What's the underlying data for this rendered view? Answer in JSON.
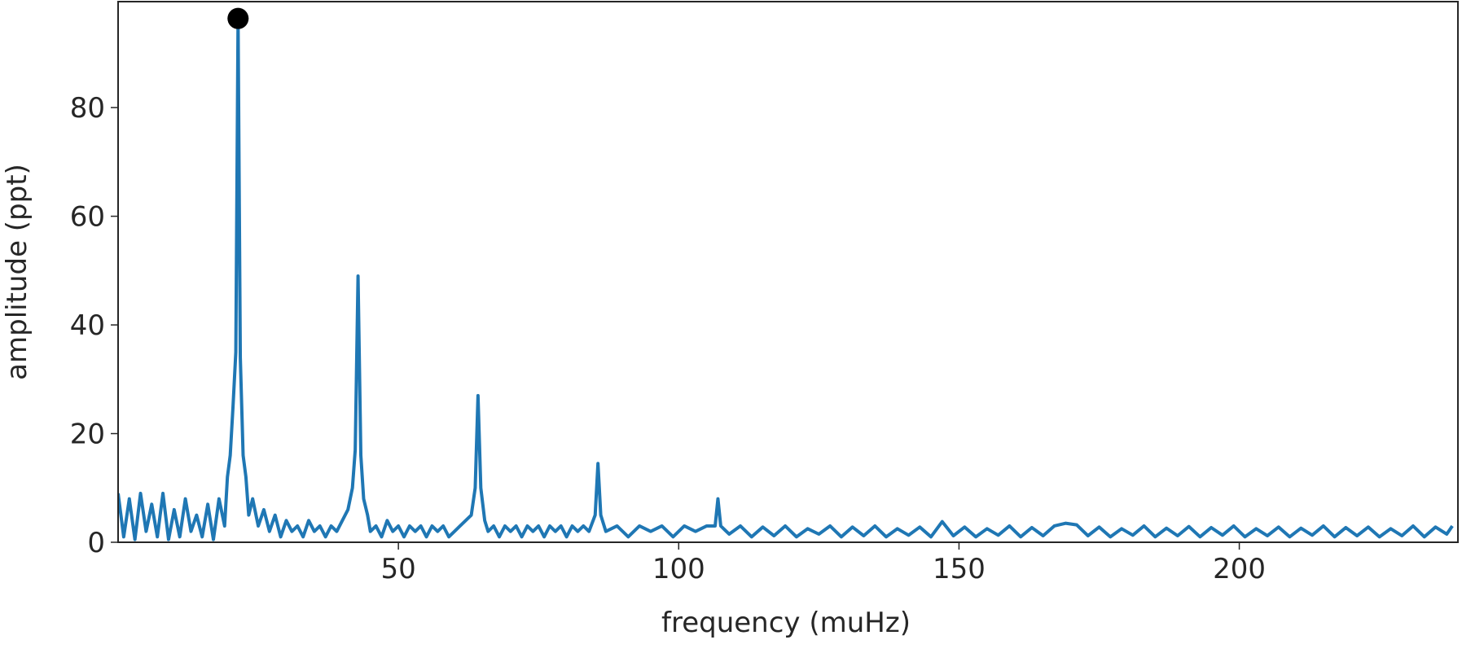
{
  "chart_data": {
    "type": "line",
    "xlabel": "frequency (muHz)",
    "ylabel": "amplitude (ppt)",
    "xlim": [
      0,
      239
    ],
    "ylim": [
      0,
      99.5
    ],
    "xticks": [
      50,
      100,
      150,
      200
    ],
    "yticks": [
      0,
      20,
      40,
      60,
      80
    ],
    "series": [
      {
        "color": "#1f77b4",
        "x": [
          0,
          1,
          2,
          3,
          4,
          5,
          6,
          7,
          8,
          9,
          10,
          11,
          12,
          13,
          14,
          15,
          16,
          17,
          18,
          19,
          19.5,
          20,
          20.5,
          21,
          21.4,
          21.8,
          22.3,
          22.8,
          23.3,
          24,
          25,
          26,
          27,
          28,
          29,
          30,
          31,
          32,
          33,
          34,
          35,
          36,
          37,
          38,
          39,
          40,
          41,
          41.8,
          42.3,
          42.8,
          43.3,
          43.8,
          44.5,
          45,
          46,
          47,
          48,
          49,
          50,
          51,
          52,
          53,
          54,
          55,
          56,
          57,
          58,
          59,
          60,
          61,
          62,
          63,
          63.7,
          64.2,
          64.7,
          65.4,
          66,
          67,
          68,
          69,
          70,
          71,
          72,
          73,
          74,
          75,
          76,
          77,
          78,
          79,
          80,
          81,
          82,
          83,
          84,
          85.1,
          85.6,
          86.1,
          87,
          89,
          91,
          93,
          95,
          97,
          99,
          101,
          103,
          105,
          106.5,
          107,
          107.5,
          109,
          111,
          113,
          115,
          117,
          119,
          121,
          123,
          125,
          127,
          129,
          131,
          133,
          135,
          137,
          139,
          141,
          143,
          145,
          147,
          149,
          151,
          153,
          155,
          157,
          159,
          161,
          163,
          165,
          167,
          169,
          171,
          173,
          175,
          177,
          179,
          181,
          183,
          185,
          187,
          189,
          191,
          193,
          195,
          197,
          199,
          201,
          203,
          205,
          207,
          209,
          211,
          213,
          215,
          217,
          219,
          221,
          223,
          225,
          227,
          229,
          231,
          233,
          235,
          237,
          238
        ],
        "values": [
          9,
          1,
          8,
          0.5,
          9,
          2,
          7,
          1,
          9,
          0.5,
          6,
          1,
          8,
          2,
          5,
          1,
          7,
          0.5,
          8,
          3,
          12,
          16,
          25,
          35,
          96.4,
          34,
          16,
          12,
          5,
          8,
          3,
          6,
          2,
          5,
          1,
          4,
          2,
          3,
          1,
          4,
          2,
          3,
          1,
          3,
          2,
          4,
          6,
          10,
          17,
          49,
          16,
          8,
          5,
          2,
          3,
          1,
          4,
          2,
          3,
          1,
          3,
          2,
          3,
          1,
          3,
          2,
          3,
          1,
          2,
          3,
          4,
          5,
          10,
          27,
          10,
          4,
          2,
          3,
          1,
          3,
          2,
          3,
          1,
          3,
          2,
          3,
          1,
          3,
          2,
          3,
          1,
          3,
          2,
          3,
          2,
          5,
          14.5,
          5,
          2,
          3,
          1,
          3,
          2,
          3,
          1,
          3,
          2,
          3,
          3,
          8,
          3,
          1.5,
          3,
          1,
          2.8,
          1.2,
          3,
          1,
          2.5,
          1.5,
          3,
          1,
          2.8,
          1.2,
          3,
          1,
          2.5,
          1.3,
          2.8,
          1,
          3.8,
          1.2,
          2.8,
          1,
          2.5,
          1.3,
          3,
          1,
          2.7,
          1.2,
          3,
          3.5,
          3.2,
          1.2,
          2.8,
          1,
          2.5,
          1.3,
          3,
          1,
          2.6,
          1.2,
          2.9,
          1,
          2.7,
          1.3,
          3,
          1,
          2.5,
          1.2,
          2.8,
          1,
          2.6,
          1.3,
          3,
          1,
          2.7,
          1.2,
          2.8,
          1,
          2.5,
          1.2,
          3,
          1,
          2.8,
          1.5,
          3
        ]
      }
    ],
    "peak": {
      "x": 21.4,
      "y": 96.4,
      "color": "#000000"
    }
  }
}
